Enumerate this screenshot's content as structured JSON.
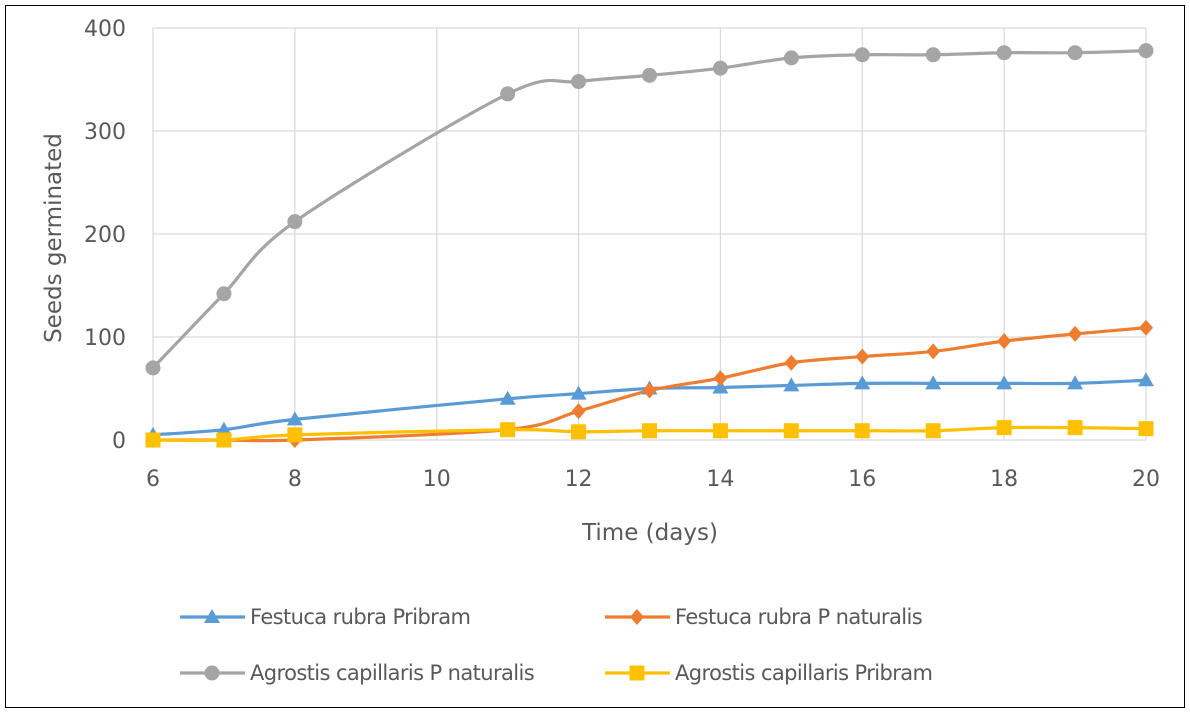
{
  "chart_data": {
    "type": "line",
    "title": "",
    "xlabel": "Time (days)",
    "ylabel": "Seeds germinated",
    "xlim": [
      6,
      20
    ],
    "ylim": [
      0,
      400
    ],
    "x_ticks": [
      "6",
      "8",
      "10",
      "12",
      "14",
      "16",
      "18",
      "20"
    ],
    "y_ticks": [
      "0",
      "100",
      "200",
      "300",
      "400"
    ],
    "x_tick_values": [
      6,
      8,
      10,
      12,
      14,
      16,
      18,
      20
    ],
    "y_tick_values": [
      0,
      100,
      200,
      300,
      400
    ],
    "grid": true,
    "legend_position": "bottom",
    "x": [
      6,
      7,
      8,
      11,
      12,
      13,
      14,
      15,
      16,
      17,
      18,
      19,
      20
    ],
    "series": [
      {
        "name": "Festuca rubra Pribram",
        "color": "#5b9bd5",
        "marker": "triangle",
        "values": [
          5,
          10,
          20,
          40,
          45,
          50,
          51,
          53,
          55,
          55,
          55,
          55,
          58
        ]
      },
      {
        "name": "Festuca rubra P naturalis",
        "color": "#ed7d31",
        "marker": "diamond",
        "values": [
          0,
          0,
          0,
          10,
          28,
          48,
          60,
          75,
          81,
          86,
          96,
          103,
          109
        ]
      },
      {
        "name": "Agrostis capillaris P naturalis",
        "color": "#a5a5a5",
        "marker": "circle",
        "values": [
          70,
          142,
          212,
          336,
          348,
          354,
          361,
          371,
          374,
          374,
          376,
          376,
          378
        ]
      },
      {
        "name": "Agrostis capillaris Pribram",
        "color": "#ffc000",
        "marker": "square",
        "values": [
          0,
          0,
          5,
          10,
          8,
          9,
          9,
          9,
          9,
          9,
          12,
          12,
          11
        ]
      }
    ]
  }
}
